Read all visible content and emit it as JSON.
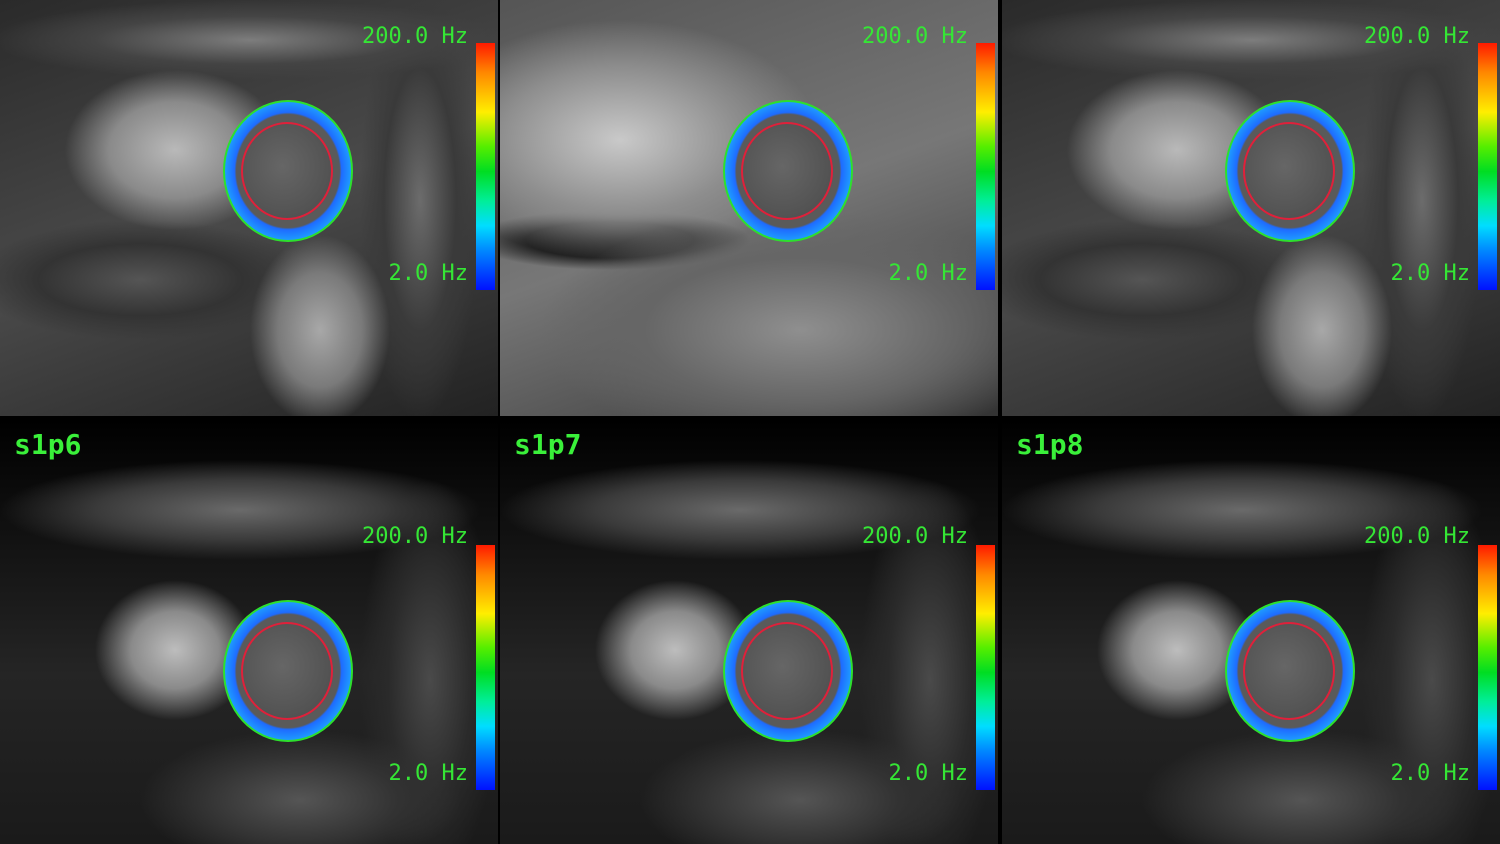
{
  "viewer": {
    "colorbar": {
      "max_label": "200.0 Hz",
      "min_label": "2.0 Hz",
      "colormap": "jet"
    },
    "accent_color": "#35e635",
    "selection_color": "#e0141a",
    "panels": [
      {
        "label": "",
        "row": "top",
        "selected": true
      },
      {
        "label": "",
        "row": "top",
        "selected": false
      },
      {
        "label": "",
        "row": "top",
        "selected": false
      },
      {
        "label": "s1p6",
        "row": "bottom",
        "selected": false
      },
      {
        "label": "s1p7",
        "row": "bottom",
        "selected": false
      },
      {
        "label": "s1p8",
        "row": "bottom",
        "selected": false
      }
    ]
  }
}
